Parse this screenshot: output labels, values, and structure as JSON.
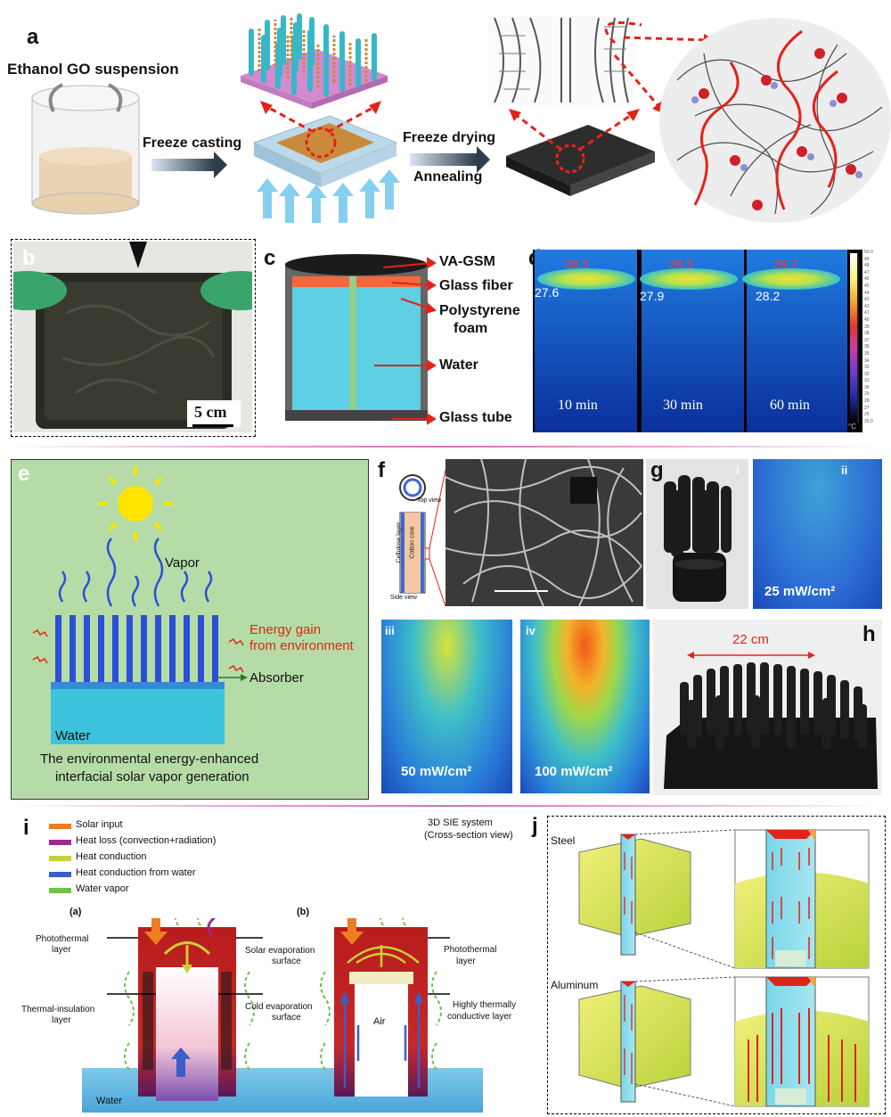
{
  "panel_a": {
    "label": "a",
    "suspension": "Ethanol GO suspension",
    "step1": "Freeze casting",
    "step2": "Freeze drying",
    "step3": "Annealing"
  },
  "panel_b": {
    "label": "b",
    "scale": "5 cm"
  },
  "panel_c": {
    "label": "c",
    "layers": [
      "VA-GSM",
      "Glass fiber",
      "Polystyrene",
      "foam",
      "Water",
      "Glass tube"
    ]
  },
  "panel_d": {
    "label": "d",
    "frames": [
      {
        "top": "38.5",
        "side": "27.6",
        "time": "10 min"
      },
      {
        "top": "39.5",
        "side": "27.9",
        "time": "30 min"
      },
      {
        "top": "39.7",
        "side": "28.2",
        "time": "60 min"
      }
    ],
    "scale_ticks": [
      "50.0",
      "49",
      "48",
      "47",
      "46",
      "45",
      "44",
      "43",
      "42",
      "41",
      "40",
      "39",
      "38",
      "37",
      "36",
      "35",
      "34",
      "33",
      "32",
      "31",
      "30",
      "29",
      "28",
      "27",
      "26",
      "25.0"
    ],
    "unit": "°C"
  },
  "panel_e": {
    "label": "e",
    "vapor": "Vapor",
    "energy1": "Energy gain",
    "energy2": "from environment",
    "absorber": "Absorber",
    "water": "Water",
    "caption1": "The environmental energy-enhanced",
    "caption2": "interfacial solar vapor generation"
  },
  "panel_f": {
    "label": "f",
    "top_view": "Top view",
    "side_view": "Side view",
    "cellulose": "Cellulose layer",
    "cotton": "Cotton core"
  },
  "panel_g": {
    "label": "g",
    "i": "i",
    "ii": "ii",
    "iii": "iii",
    "iv": "iv",
    "p25": "25 mW/cm²",
    "p50": "50 mW/cm²",
    "p100": "100 mW/cm²"
  },
  "panel_h": {
    "label": "h",
    "width": "22 cm"
  },
  "panel_i": {
    "label": "i",
    "legend": [
      "Solar input",
      "Heat loss (convection+radiation)",
      "Heat conduction",
      "Heat conduction from water",
      "Water vapor"
    ],
    "legend_colors": [
      "#ef7d22",
      "#9b2a8f",
      "#c9cf3a",
      "#3a5fc8",
      "#6cc24a"
    ],
    "sub_a": "(a)",
    "sub_b": "(b)",
    "photothermal_l1": "Photothermal",
    "photothermal_l2": "layer",
    "insulation_l1": "Thermal-insulation",
    "insulation_l2": "layer",
    "solar_evap_l1": "Solar evaporation",
    "solar_evap_l2": "surface",
    "cold_evap_l1": "Cold evaporation",
    "cold_evap_l2": "surface",
    "photothermal2_l1": "Photothermal",
    "photothermal2_l2": "layer",
    "conductive_l1": "Highly thermally",
    "conductive_l2": "conductive layer",
    "air": "Air",
    "water": "Water"
  },
  "panel_j": {
    "label": "j",
    "title1": "3D SIE system",
    "title2": "(Cross-section view)",
    "steel": "Steel",
    "aluminum": "Aluminum"
  }
}
